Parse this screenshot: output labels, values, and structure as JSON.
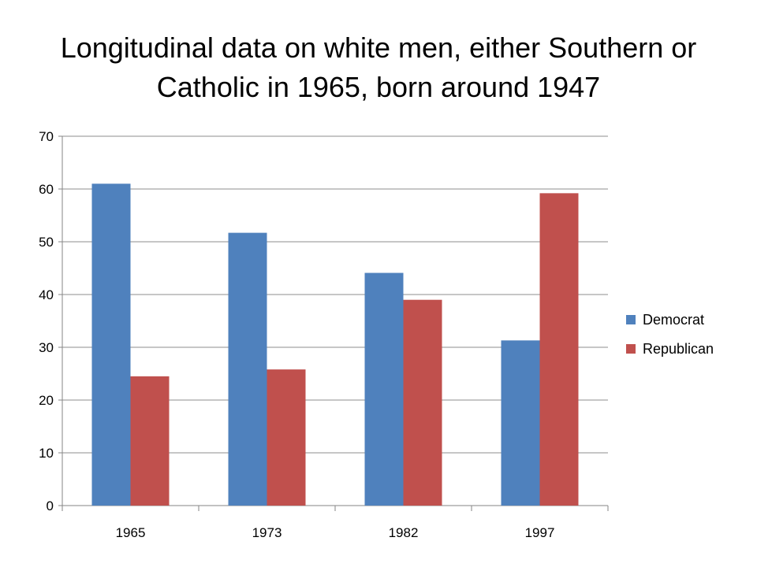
{
  "title_lines": [
    "Longitudinal data on white men, either Southern or",
    "Catholic in 1965, born around 1947"
  ],
  "chart_data": {
    "type": "bar",
    "title": "Longitudinal data on white men, either Southern or Catholic in 1965, born around 1947",
    "categories": [
      "1965",
      "1973",
      "1982",
      "1997"
    ],
    "series": [
      {
        "name": "Democrat",
        "values": [
          61,
          51.7,
          44.1,
          31.3
        ],
        "color": "#4F81BD"
      },
      {
        "name": "Republican",
        "values": [
          24.5,
          25.8,
          39.0,
          59.2
        ],
        "color": "#C0504D"
      }
    ],
    "ylim": [
      0,
      70
    ],
    "yticks": [
      0,
      10,
      20,
      30,
      40,
      50,
      60,
      70
    ],
    "xlabel": "",
    "ylabel": "",
    "grid": true,
    "legend_position": "right"
  }
}
